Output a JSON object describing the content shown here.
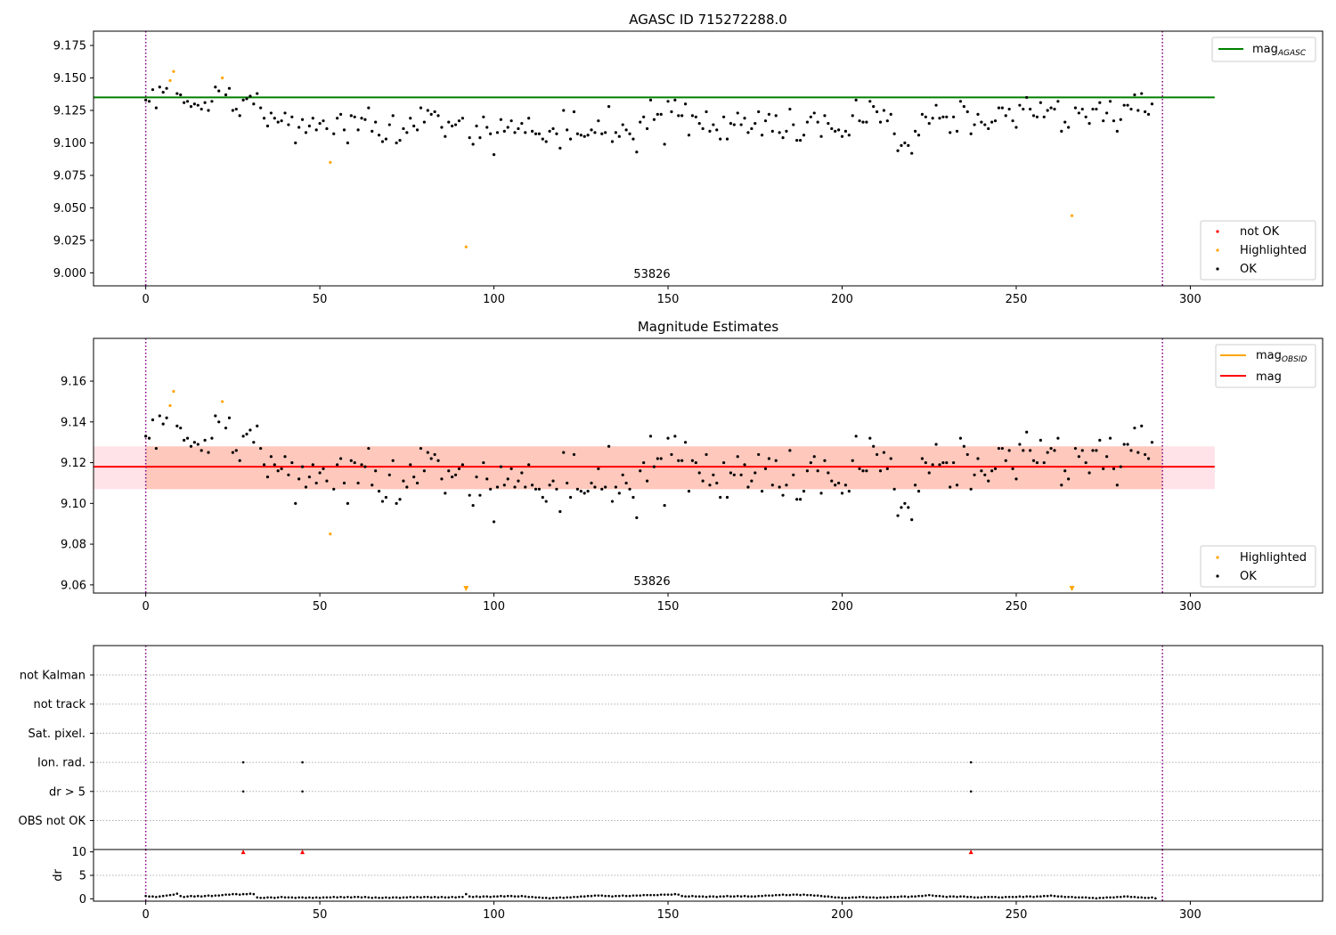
{
  "colors": {
    "ok": "#000000",
    "highlighted": "#ffa500",
    "not_ok": "#ff0000",
    "agasc_line": "#008000",
    "obsid_line": "#ffa500",
    "mag_line": "#ff0000",
    "band_outer": "#ffc0cb",
    "band_inner": "#ffa07a",
    "vline": "#800080",
    "grid": "#b0b0b0"
  },
  "chart_data": [
    {
      "id": "top",
      "type": "scatter",
      "title": "AGASC ID 715272288.0",
      "xlim": [
        -15,
        338
      ],
      "ylim": [
        8.99,
        9.186
      ],
      "yticks": [
        "9.000",
        "9.025",
        "9.050",
        "9.075",
        "9.100",
        "9.125",
        "9.150",
        "9.175"
      ],
      "xticks": [
        "0",
        "50",
        "100",
        "150",
        "200",
        "250",
        "300"
      ],
      "annotation": "53826",
      "vlines": [
        0,
        292
      ],
      "agasc_line": {
        "y": 9.135,
        "x": [
          -15,
          307
        ]
      },
      "legend_top": [
        {
          "label": "mag",
          "sub": "AGASC"
        }
      ],
      "legend_bottom": [
        "not OK",
        "Highlighted",
        "OK"
      ],
      "highlighted": [
        [
          7,
          9.148
        ],
        [
          8,
          9.155
        ],
        [
          22,
          9.15
        ],
        [
          53,
          9.085
        ],
        [
          92,
          9.02
        ],
        [
          266,
          9.044
        ]
      ],
      "not_ok": []
    },
    {
      "id": "mid",
      "type": "scatter",
      "title": "Magnitude Estimates",
      "xlim": [
        -15,
        338
      ],
      "ylim": [
        9.056,
        9.181
      ],
      "yticks": [
        "9.06",
        "9.08",
        "9.10",
        "9.12",
        "9.14",
        "9.16"
      ],
      "xticks": [
        "0",
        "50",
        "100",
        "150",
        "200",
        "250",
        "300"
      ],
      "annotation": "53826",
      "vlines": [
        0,
        292
      ],
      "mag_line": {
        "y": 9.118,
        "x": [
          -15,
          307
        ]
      },
      "band_outer": [
        9.107,
        9.128
      ],
      "band_inner": [
        9.107,
        9.128
      ],
      "legend_top": [
        {
          "label": "mag",
          "sub": "OBSID"
        },
        {
          "label": "mag",
          "sub": ""
        }
      ],
      "legend_bottom": [
        "Highlighted",
        "OK"
      ],
      "highlighted": [
        [
          7,
          9.148
        ],
        [
          8,
          9.155
        ],
        [
          22,
          9.15
        ],
        [
          53,
          9.085
        ]
      ],
      "arrows": [
        92,
        266
      ]
    },
    {
      "id": "flags",
      "type": "scatter",
      "xlim": [
        -15,
        338
      ],
      "categories": [
        "not Kalman",
        "not track",
        "Sat. pixel.",
        "Ion. rad.",
        "dr > 5",
        "OBS not OK"
      ],
      "flag_points": {
        "Ion. rad.": [
          28,
          45,
          237
        ],
        "dr > 5": [
          28,
          45,
          237
        ]
      },
      "vlines": [
        0,
        292
      ]
    },
    {
      "id": "dr",
      "type": "scatter",
      "xlim": [
        -15,
        338
      ],
      "ylim": [
        -0.5,
        10.5
      ],
      "ylabel": "dr",
      "yticks": [
        "0",
        "5",
        "10"
      ],
      "xticks": [
        "0",
        "50",
        "100",
        "150",
        "200",
        "250",
        "300"
      ],
      "clipped_markers": [
        28,
        45,
        237
      ],
      "vlines": [
        0,
        292
      ]
    }
  ],
  "series_ok": [
    9.133,
    9.132,
    9.141,
    9.127,
    9.143,
    9.139,
    9.142,
    9.133,
    9.109,
    9.138,
    9.137,
    9.131,
    9.132,
    9.128,
    9.13,
    9.129,
    9.126,
    9.131,
    9.125,
    9.132,
    9.143,
    9.14,
    9.136,
    9.137,
    9.142,
    9.125,
    9.126,
    9.121,
    9.133,
    9.134,
    9.136,
    9.13,
    9.138,
    9.127,
    9.119,
    9.113,
    9.123,
    9.119,
    9.116,
    9.117,
    9.123,
    9.114,
    9.12,
    9.1,
    9.112,
    9.118,
    9.108,
    9.113,
    9.119,
    9.11,
    9.115,
    9.117,
    9.111,
    9.109,
    9.107,
    9.119,
    9.122,
    9.11,
    9.1,
    9.121,
    9.12,
    9.11,
    9.119,
    9.118,
    9.127,
    9.109,
    9.116,
    9.106,
    9.101,
    9.103,
    9.114,
    9.121,
    9.1,
    9.102,
    9.111,
    9.108,
    9.119,
    9.113,
    9.11,
    9.127,
    9.116,
    9.125,
    9.122,
    9.124,
    9.121,
    9.112,
    9.105,
    9.116,
    9.113,
    9.114,
    9.117,
    9.119,
    9.124,
    9.104,
    9.099,
    9.113,
    9.104,
    9.12,
    9.112,
    9.107,
    9.091,
    9.108,
    9.118,
    9.109,
    9.112,
    9.117,
    9.108,
    9.111,
    9.115,
    9.108,
    9.119,
    9.109,
    9.107,
    9.107,
    9.103,
    9.101,
    9.109,
    9.111,
    9.107,
    9.096,
    9.125,
    9.11,
    9.103,
    9.124,
    9.107,
    9.106,
    9.105,
    9.106,
    9.11,
    9.108,
    9.117,
    9.107,
    9.108,
    9.128,
    9.101,
    9.108,
    9.105,
    9.114,
    9.11,
    9.107,
    9.103,
    9.093,
    9.116,
    9.12,
    9.111,
    9.133,
    9.118,
    9.122,
    9.122,
    9.099,
    9.132,
    9.124,
    9.133,
    9.121,
    9.121,
    9.13,
    9.106,
    9.121,
    9.12,
    9.115,
    9.111,
    9.124,
    9.109,
    9.114,
    9.11,
    9.103,
    9.12,
    9.103,
    9.115,
    9.114,
    9.123,
    9.114,
    9.119,
    9.108,
    9.111,
    9.115,
    9.124,
    9.106,
    9.117,
    9.122,
    9.109,
    9.121,
    9.108,
    9.104,
    9.109,
    9.126,
    9.114,
    9.102,
    9.102,
    9.106,
    9.116,
    9.12,
    9.123,
    9.116,
    9.105,
    9.121,
    9.115,
    9.111,
    9.109,
    9.11,
    9.105,
    9.109,
    9.106,
    9.121,
    9.133,
    9.117,
    9.116,
    9.116,
    9.132,
    9.128,
    9.124,
    9.116,
    9.125,
    9.117,
    9.122,
    9.107,
    9.094,
    9.098,
    9.1,
    9.098,
    9.092,
    9.109,
    9.106,
    9.122,
    9.12,
    9.115,
    9.119,
    9.129,
    9.119,
    9.12,
    9.12,
    9.108,
    9.12,
    9.109,
    9.132,
    9.128,
    9.124,
    9.107,
    9.114,
    9.122,
    9.116,
    9.114,
    9.111,
    9.116,
    9.117,
    9.127,
    9.127,
    9.121,
    9.126,
    9.117,
    9.112,
    9.129,
    9.126,
    9.135,
    9.126,
    9.121,
    9.12,
    9.131,
    9.12,
    9.125,
    9.127,
    9.126,
    9.132,
    9.109,
    9.116,
    9.112,
    9.111,
    9.127,
    9.123,
    9.126,
    9.12,
    9.115,
    9.126,
    9.126,
    9.131,
    9.117,
    9.123,
    9.132,
    9.117,
    9.109,
    9.118,
    9.129,
    9.129,
    9.126,
    9.137,
    9.125,
    9.138,
    9.124,
    9.122,
    9.13
  ],
  "series_dr": [
    0.6,
    0.5,
    0.5,
    0.4,
    0.5,
    0.6,
    0.7,
    0.8,
    0.9,
    1.1,
    0.6,
    0.4,
    0.5,
    0.6,
    0.5,
    0.6,
    0.5,
    0.6,
    0.7,
    0.6,
    0.7,
    0.7,
    0.8,
    0.9,
    0.9,
    1.0,
    1.0,
    0.9,
    1.0,
    1.0,
    1.1,
    1.0,
    0.3,
    0.2,
    0.2,
    0.3,
    0.3,
    0.2,
    0.3,
    0.4,
    0.3,
    0.3,
    0.3,
    0.2,
    0.3,
    0.3,
    0.2,
    0.3,
    0.2,
    0.3,
    0.2,
    0.3,
    0.3,
    0.3,
    0.4,
    0.3,
    0.4,
    0.3,
    0.4,
    0.3,
    0.4,
    0.4,
    0.3,
    0.4,
    0.3,
    0.2,
    0.3,
    0.2,
    0.2,
    0.3,
    0.2,
    0.3,
    0.3,
    0.2,
    0.3,
    0.3,
    0.4,
    0.3,
    0.4,
    0.3,
    0.4,
    0.4,
    0.3,
    0.4,
    0.3,
    0.4,
    0.3,
    0.3,
    0.4,
    0.3,
    0.4,
    0.4,
    1.0,
    0.5,
    0.4,
    0.5,
    0.4,
    0.5,
    0.5,
    0.4,
    0.5,
    0.5,
    0.6,
    0.5,
    0.6,
    0.6,
    0.5,
    0.5,
    0.6,
    0.5,
    0.4,
    0.4,
    0.3,
    0.3,
    0.2,
    0.2,
    0.1,
    0.2,
    0.2,
    0.3,
    0.2,
    0.3,
    0.3,
    0.4,
    0.4,
    0.5,
    0.5,
    0.6,
    0.6,
    0.7,
    0.7,
    0.7,
    0.6,
    0.6,
    0.5,
    0.6,
    0.6,
    0.7,
    0.6,
    0.6,
    0.7,
    0.7,
    0.7,
    0.8,
    0.8,
    0.8,
    0.8,
    0.8,
    0.9,
    0.9,
    0.9,
    0.9,
    1.0,
    0.9,
    0.6,
    0.5,
    0.5,
    0.6,
    0.5,
    0.5,
    0.5,
    0.4,
    0.5,
    0.5,
    0.4,
    0.5,
    0.5,
    0.6,
    0.5,
    0.5,
    0.6,
    0.5,
    0.6,
    0.5,
    0.5,
    0.5,
    0.6,
    0.6,
    0.7,
    0.7,
    0.7,
    0.8,
    0.8,
    0.9,
    0.8,
    0.8,
    0.9,
    0.9,
    0.8,
    0.9,
    0.8,
    0.8,
    0.7,
    0.7,
    0.6,
    0.5,
    0.5,
    0.4,
    0.3,
    0.3,
    0.2,
    0.2,
    0.2,
    0.3,
    0.3,
    0.4,
    0.4,
    0.3,
    0.3,
    0.3,
    0.2,
    0.3,
    0.3,
    0.3,
    0.4,
    0.4,
    0.4,
    0.5,
    0.5,
    0.4,
    0.5,
    0.5,
    0.6,
    0.6,
    0.7,
    0.8,
    0.7,
    0.6,
    0.6,
    0.5,
    0.4,
    0.5,
    0.5,
    0.4,
    0.5,
    0.5,
    0.4,
    0.4,
    0.3,
    0.3,
    0.3,
    0.4,
    0.4,
    0.4,
    0.4,
    0.3,
    0.3,
    0.4,
    0.4,
    0.4,
    0.4,
    0.5,
    0.4,
    0.5,
    0.5,
    0.4,
    0.5,
    0.5,
    0.6,
    0.6,
    0.7,
    0.6,
    0.5,
    0.5,
    0.4,
    0.4,
    0.4,
    0.3,
    0.3,
    0.3,
    0.3,
    0.2,
    0.2,
    0.1,
    0.2,
    0.2,
    0.3,
    0.3,
    0.3,
    0.4,
    0.4,
    0.5,
    0.5,
    0.4,
    0.4,
    0.3,
    0.3,
    0.2,
    0.2,
    0.3,
    0.1
  ]
}
